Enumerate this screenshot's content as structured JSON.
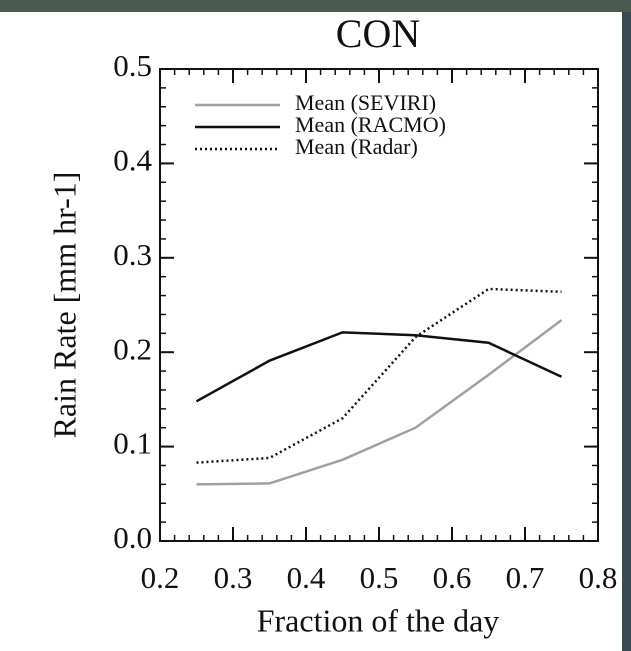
{
  "chart_data": {
    "type": "line",
    "title": "CON",
    "xlabel": "Fraction of the day",
    "ylabel": "Rain Rate [mm hr-1]",
    "x": [
      0.25,
      0.35,
      0.45,
      0.55,
      0.65,
      0.75
    ],
    "series": [
      {
        "name": "Mean (SEVIRI)",
        "color": "#a0a0a0",
        "style": "solid",
        "values": [
          0.06,
          0.061,
          0.086,
          0.12,
          0.176,
          0.234
        ]
      },
      {
        "name": "Mean (RACMO)",
        "color": "#111111",
        "style": "solid",
        "values": [
          0.148,
          0.191,
          0.221,
          0.218,
          0.21,
          0.174
        ]
      },
      {
        "name": "Mean (Radar)",
        "color": "#111111",
        "style": "dotted",
        "values": [
          0.083,
          0.088,
          0.13,
          0.216,
          0.267,
          0.264
        ]
      }
    ],
    "xlim": [
      0.2,
      0.8
    ],
    "xticks": [
      0.2,
      0.3,
      0.4,
      0.5,
      0.6,
      0.7,
      0.8
    ],
    "ylim": [
      0,
      0.5
    ],
    "yticks": [
      {
        "value": 0,
        "label": "0.0"
      },
      0.1,
      0.2,
      0.3,
      0.4,
      0.5
    ],
    "legend": "upper left",
    "grid": false
  }
}
